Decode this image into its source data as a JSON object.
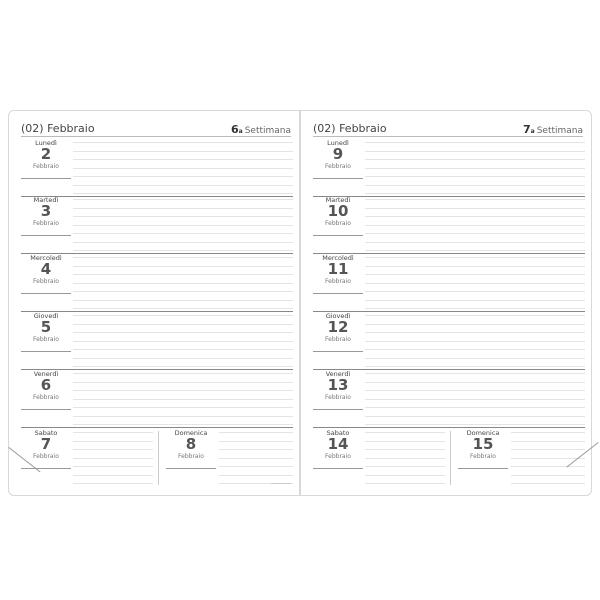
{
  "pages": [
    {
      "month_title": "(02) Febbraio",
      "week_number": "6",
      "week_suffix": "a",
      "week_label": "Settimana",
      "days": [
        {
          "name": "Lunedì",
          "number": "2",
          "month": "Febbraio"
        },
        {
          "name": "Martedì",
          "number": "3",
          "month": "Febbraio"
        },
        {
          "name": "Mercoledì",
          "number": "4",
          "month": "Febbraio"
        },
        {
          "name": "Giovedì",
          "number": "5",
          "month": "Febbraio"
        },
        {
          "name": "Venerdì",
          "number": "6",
          "month": "Febbraio"
        },
        {
          "name": "Sabato",
          "number": "7",
          "month": "Febbraio"
        },
        {
          "name": "Domenica",
          "number": "8",
          "month": "Febbraio"
        }
      ]
    },
    {
      "month_title": "(02) Febbraio",
      "week_number": "7",
      "week_suffix": "a",
      "week_label": "Settimana",
      "days": [
        {
          "name": "Lunedì",
          "number": "9",
          "month": "Febbraio"
        },
        {
          "name": "Martedì",
          "number": "10",
          "month": "Febbraio"
        },
        {
          "name": "Mercoledì",
          "number": "11",
          "month": "Febbraio"
        },
        {
          "name": "Giovedì",
          "number": "12",
          "month": "Febbraio"
        },
        {
          "name": "Venerdì",
          "number": "13",
          "month": "Febbraio"
        },
        {
          "name": "Sabato",
          "number": "14",
          "month": "Febbraio"
        },
        {
          "name": "Domenica",
          "number": "15",
          "month": "Febbraio"
        }
      ]
    }
  ]
}
